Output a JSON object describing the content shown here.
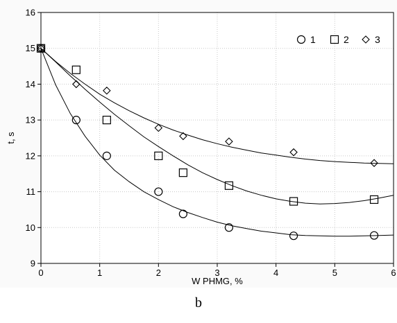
{
  "caption": "b",
  "chart_data": {
    "type": "scatter",
    "title": "",
    "xlabel": "W PHMG, %",
    "ylabel": "t, s",
    "xlim": [
      0,
      6
    ],
    "ylim": [
      9,
      16
    ],
    "xticks": [
      "0",
      "1",
      "2",
      "3",
      "4",
      "5",
      "6"
    ],
    "yticks": [
      "9",
      "10",
      "11",
      "12",
      "13",
      "14",
      "15",
      "16"
    ],
    "grid": true,
    "legend_position": "top-right",
    "series": [
      {
        "name": "1",
        "marker": "circle",
        "x": [
          0,
          0.6,
          1.12,
          2.0,
          2.42,
          3.2,
          4.3,
          5.67
        ],
        "y": [
          15.0,
          13.0,
          12.0,
          11.0,
          10.38,
          10.0,
          9.77,
          9.78
        ],
        "fit_x": [
          0,
          0.25,
          0.5,
          0.75,
          1,
          1.25,
          1.5,
          1.75,
          2,
          2.25,
          2.5,
          2.75,
          3,
          3.25,
          3.5,
          3.75,
          4,
          4.25,
          4.5,
          4.75,
          5,
          5.25,
          5.5,
          5.75,
          6
        ],
        "fit_y": [
          15.0,
          13.98,
          13.18,
          12.55,
          12.02,
          11.6,
          11.28,
          11.0,
          10.78,
          10.58,
          10.42,
          10.28,
          10.15,
          10.05,
          9.97,
          9.9,
          9.85,
          9.8,
          9.78,
          9.77,
          9.76,
          9.76,
          9.77,
          9.78,
          9.79
        ]
      },
      {
        "name": "2",
        "marker": "square",
        "x": [
          0,
          0.6,
          1.12,
          2.0,
          2.42,
          3.2,
          4.3,
          5.67
        ],
        "y": [
          15.0,
          14.4,
          13.0,
          12.0,
          11.53,
          11.17,
          10.73,
          10.78
        ],
        "fit_x": [
          0,
          0.25,
          0.5,
          0.75,
          1,
          1.25,
          1.5,
          1.75,
          2,
          2.25,
          2.5,
          2.75,
          3,
          3.25,
          3.5,
          3.75,
          4,
          4.25,
          4.5,
          4.75,
          5,
          5.25,
          5.5,
          5.75,
          6
        ],
        "fit_y": [
          15.0,
          14.62,
          14.23,
          13.86,
          13.5,
          13.16,
          12.84,
          12.53,
          12.26,
          12.0,
          11.75,
          11.53,
          11.34,
          11.17,
          11.02,
          10.9,
          10.8,
          10.73,
          10.68,
          10.66,
          10.67,
          10.7,
          10.75,
          10.82,
          10.9
        ]
      },
      {
        "name": "3",
        "marker": "diamond",
        "x": [
          0,
          0.6,
          1.12,
          2.0,
          2.42,
          3.2,
          4.3,
          5.67
        ],
        "y": [
          15.0,
          14.0,
          13.82,
          12.78,
          12.55,
          12.4,
          12.1,
          11.8
        ],
        "fit_x": [
          0,
          0.25,
          0.5,
          0.75,
          1,
          1.25,
          1.5,
          1.75,
          2,
          2.25,
          2.5,
          2.75,
          3,
          3.25,
          3.5,
          3.75,
          4,
          4.25,
          4.5,
          4.75,
          5,
          5.25,
          5.5,
          5.75,
          6
        ],
        "fit_y": [
          15.0,
          14.63,
          14.3,
          14.0,
          13.72,
          13.48,
          13.26,
          13.06,
          12.88,
          12.72,
          12.58,
          12.45,
          12.34,
          12.24,
          12.16,
          12.08,
          12.02,
          11.96,
          11.91,
          11.87,
          11.84,
          11.82,
          11.8,
          11.79,
          11.78
        ]
      }
    ]
  }
}
